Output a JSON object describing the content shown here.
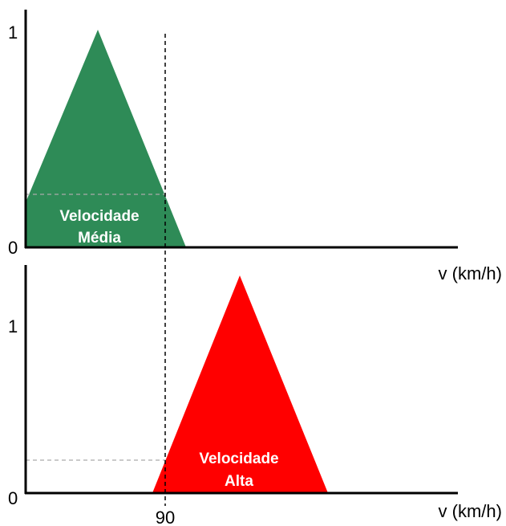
{
  "top_panel": {
    "y_top_label": "1",
    "y_bottom_label": "0",
    "set_label": [
      "Velocidade",
      "Média"
    ],
    "x_axis_label": "v (km/h)"
  },
  "bottom_panel": {
    "y_top_label": "1",
    "y_bottom_label": "0",
    "set_label": [
      "Velocidade",
      "Alta"
    ],
    "x_axis_label": "v (km/h)"
  },
  "input_label": "90"
}
